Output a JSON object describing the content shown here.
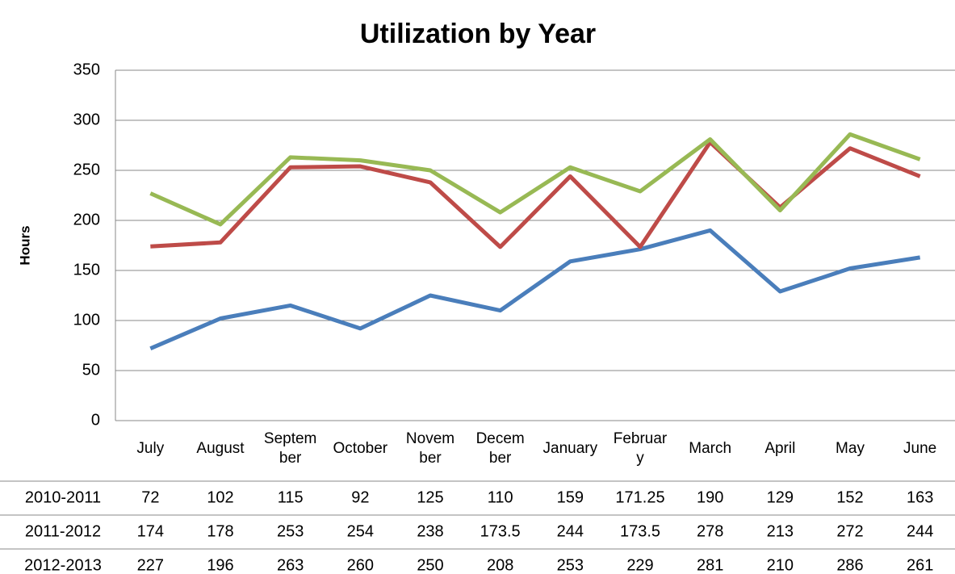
{
  "chart_data": {
    "type": "line",
    "title": "Utilization by Year",
    "y_label": "Hours",
    "categories": [
      "July",
      "August",
      "September",
      "October",
      "November",
      "December",
      "January",
      "February",
      "March",
      "April",
      "May",
      "June"
    ],
    "series": [
      {
        "name": "2010-2011",
        "color": "#4a7ebb",
        "values": [
          72,
          102,
          115,
          92,
          125,
          110,
          159,
          171.25,
          190,
          129,
          152,
          163
        ]
      },
      {
        "name": "2011-2012",
        "color": "#be4b48",
        "values": [
          174,
          178,
          253,
          254,
          238,
          173.5,
          244,
          173.5,
          278,
          213,
          272,
          244
        ]
      },
      {
        "name": "2012-2013",
        "color": "#98b954",
        "values": [
          227,
          196,
          263,
          260,
          250,
          208,
          253,
          229,
          281,
          210,
          286,
          261
        ]
      }
    ],
    "ylim": [
      0,
      350
    ],
    "yticks": [
      0,
      50,
      100,
      150,
      200,
      250,
      300,
      350
    ],
    "grid": true,
    "data_table": true
  }
}
